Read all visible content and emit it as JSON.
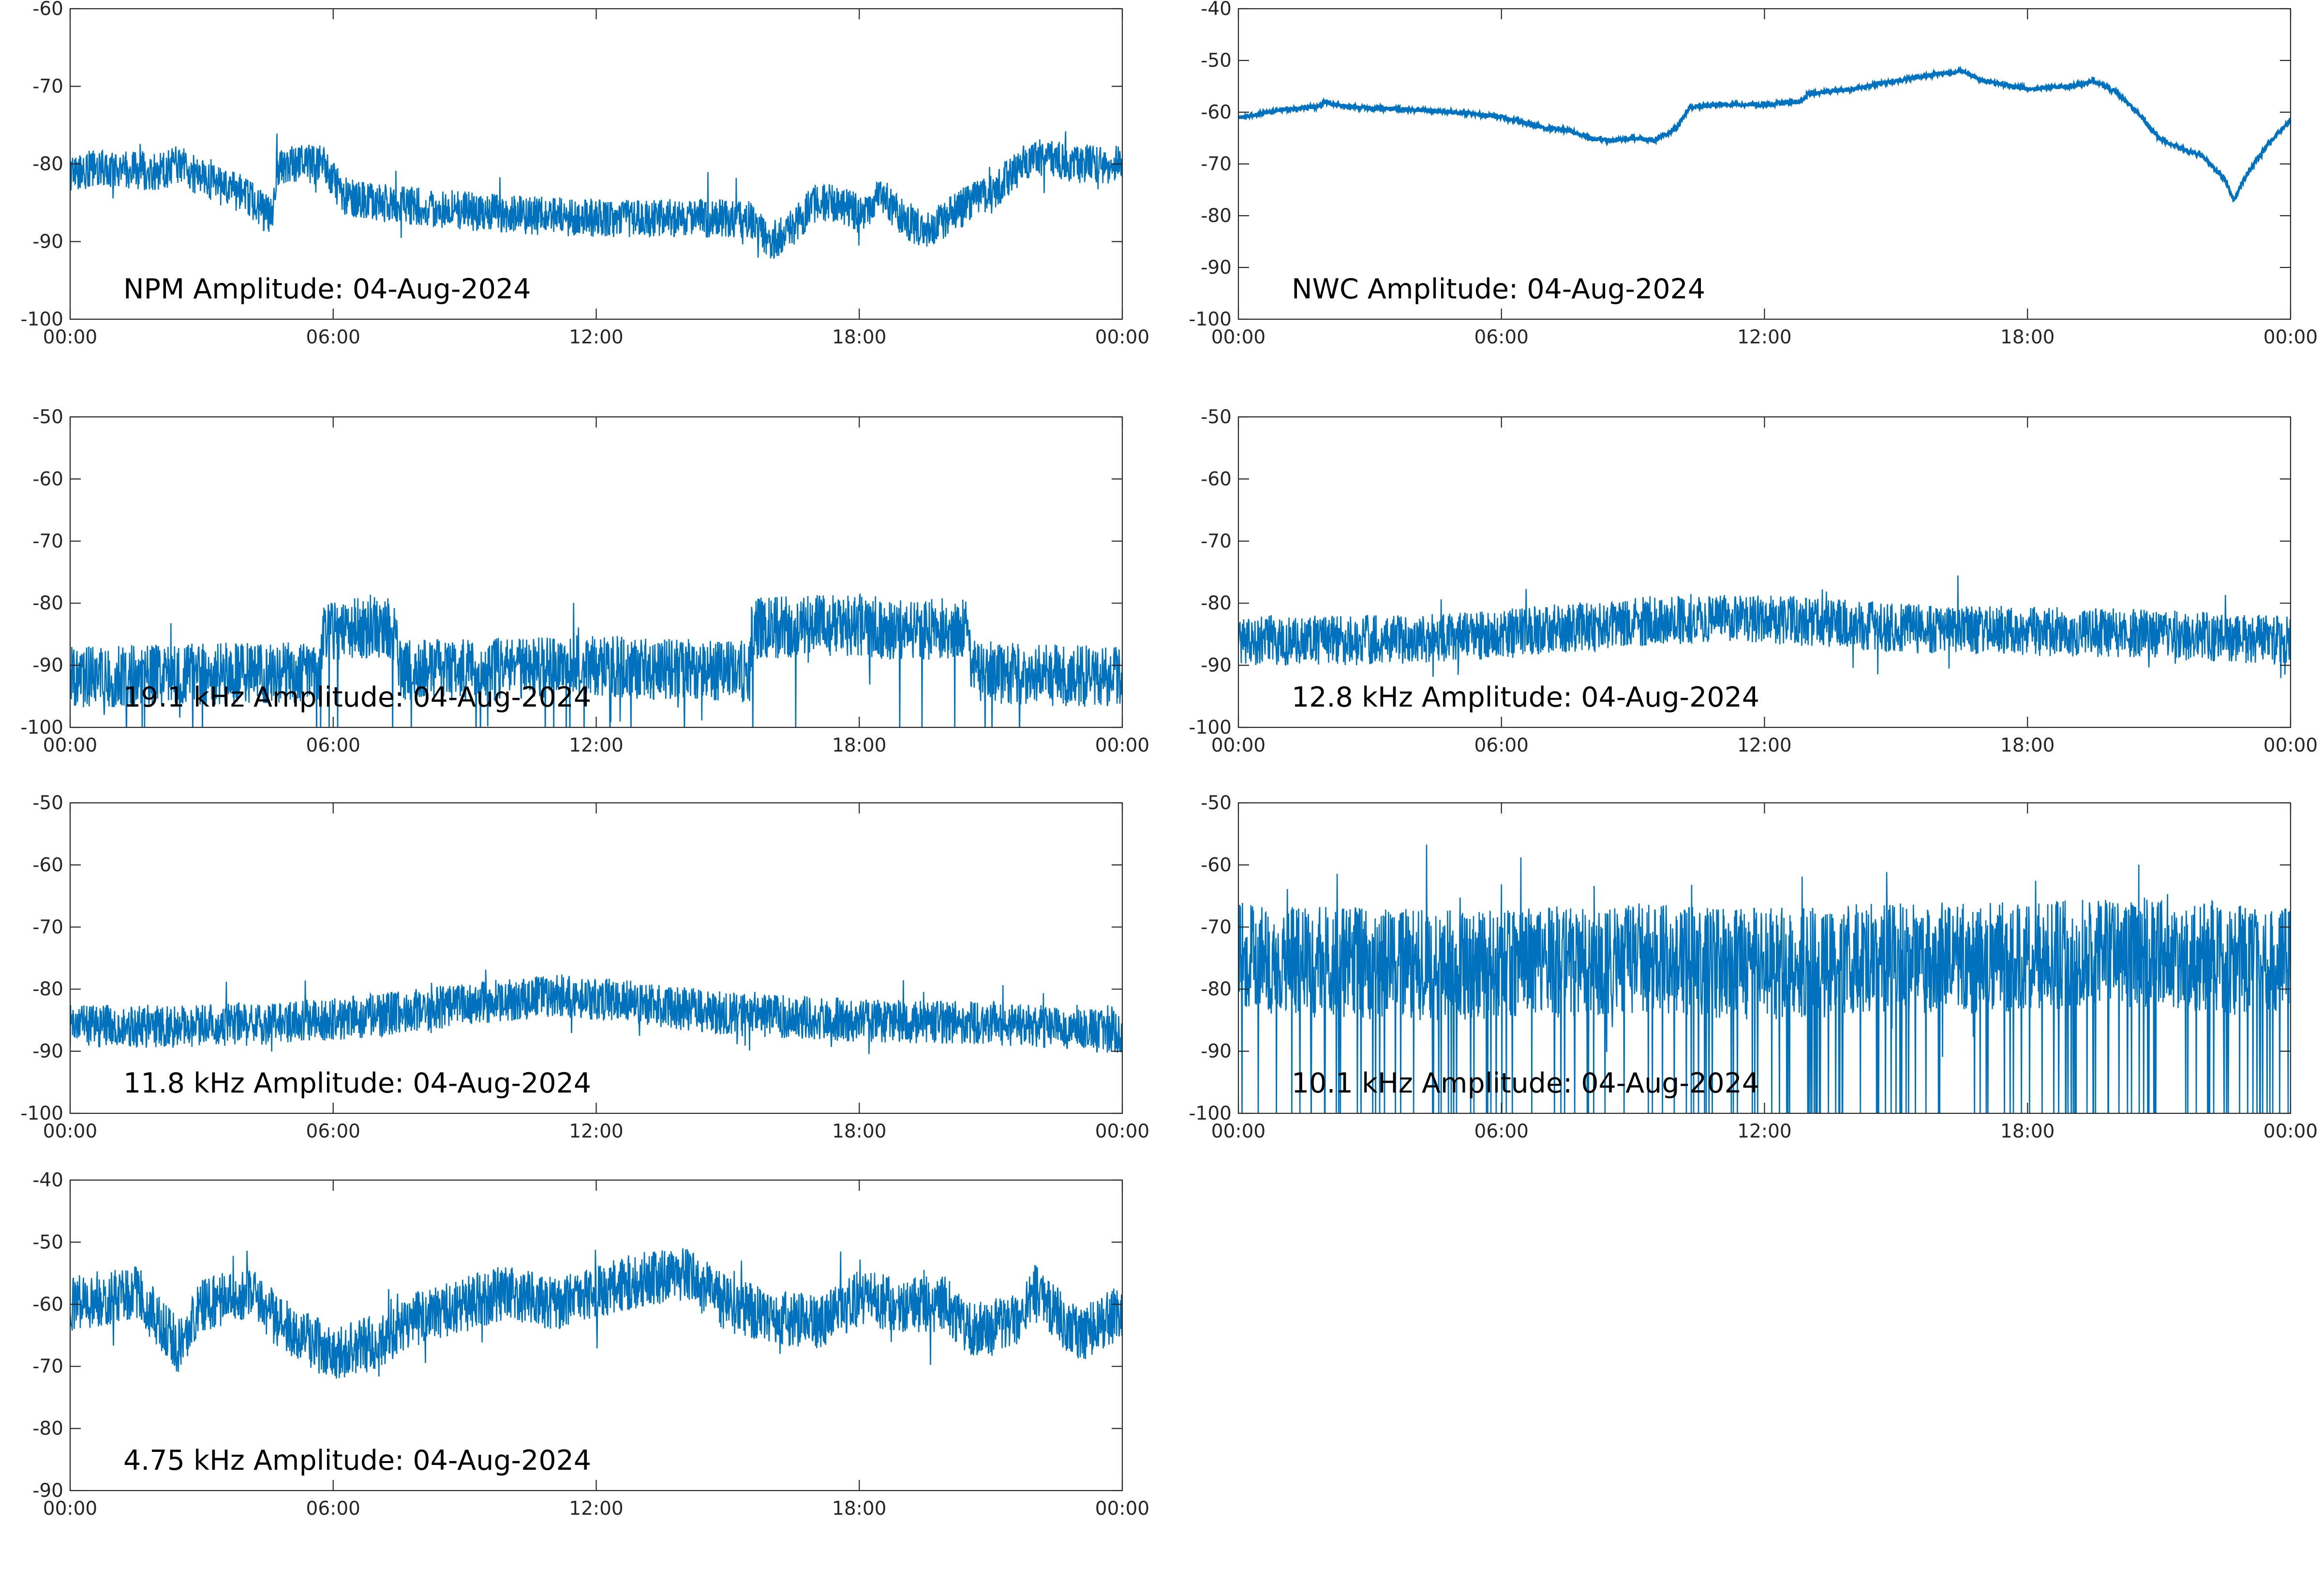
{
  "figure": {
    "trace_color": "#0072bd",
    "axis_color": "#262626",
    "background": "#ffffff"
  },
  "chart_data": [
    {
      "type": "line",
      "title": "NPM Amplitude: 04-Aug-2024",
      "x_tick_labels": [
        "00:00",
        "06:00",
        "12:00",
        "18:00",
        "00:00"
      ],
      "x_range_hours": [
        0,
        24
      ],
      "ylim": [
        -100,
        -60
      ],
      "y_ticks": [
        -100,
        -90,
        -80,
        -70,
        -60
      ],
      "grid": false,
      "series": [
        {
          "noise": 2.5,
          "points": [
            [
              0,
              -81
            ],
            [
              1,
              -80.5
            ],
            [
              2,
              -81
            ],
            [
              2.5,
              -80
            ],
            [
              3,
              -82
            ],
            [
              4,
              -84
            ],
            [
              4.6,
              -87
            ],
            [
              4.7,
              -81
            ],
            [
              5,
              -80
            ],
            [
              5.8,
              -80
            ],
            [
              6.2,
              -84
            ],
            [
              7,
              -85
            ],
            [
              8,
              -85.5
            ],
            [
              10,
              -86.5
            ],
            [
              12,
              -87
            ],
            [
              14,
              -87
            ],
            [
              15.5,
              -87
            ],
            [
              16,
              -90
            ],
            [
              16.5,
              -88
            ],
            [
              17,
              -85
            ],
            [
              17.5,
              -85
            ],
            [
              18,
              -86.5
            ],
            [
              18.5,
              -84
            ],
            [
              19,
              -87
            ],
            [
              19.5,
              -88.5
            ],
            [
              20,
              -87
            ],
            [
              20.5,
              -85
            ],
            [
              21,
              -84
            ],
            [
              21.5,
              -81
            ],
            [
              22,
              -79
            ],
            [
              23,
              -80
            ],
            [
              24,
              -80
            ]
          ]
        }
      ]
    },
    {
      "type": "line",
      "title": "NWC Amplitude: 04-Aug-2024",
      "x_tick_labels": [
        "00:00",
        "06:00",
        "12:00",
        "18:00",
        "00:00"
      ],
      "x_range_hours": [
        0,
        24
      ],
      "ylim": [
        -100,
        -40
      ],
      "y_ticks": [
        -100,
        -90,
        -80,
        -70,
        -60,
        -50,
        -40
      ],
      "grid": false,
      "series": [
        {
          "noise": 0.4,
          "points": [
            [
              0,
              -61
            ],
            [
              1,
              -59.5
            ],
            [
              1.8,
              -59
            ],
            [
              2,
              -58
            ],
            [
              2.5,
              -59
            ],
            [
              4,
              -59.5
            ],
            [
              5,
              -60
            ],
            [
              6,
              -61
            ],
            [
              7,
              -63
            ],
            [
              7.5,
              -63.5
            ],
            [
              8,
              -65
            ],
            [
              8.5,
              -65.5
            ],
            [
              9,
              -65
            ],
            [
              9.5,
              -65.5
            ],
            [
              10,
              -63
            ],
            [
              10.3,
              -59
            ],
            [
              11,
              -58.5
            ],
            [
              12,
              -58.5
            ],
            [
              12.8,
              -58
            ],
            [
              13,
              -56.5
            ],
            [
              13.5,
              -56
            ],
            [
              14,
              -55.5
            ],
            [
              15,
              -54
            ],
            [
              16,
              -52.5
            ],
            [
              16.5,
              -52
            ],
            [
              17,
              -54
            ],
            [
              18,
              -55.5
            ],
            [
              19,
              -55
            ],
            [
              19.5,
              -54
            ],
            [
              20,
              -56
            ],
            [
              20.5,
              -60
            ],
            [
              21,
              -65
            ],
            [
              21.5,
              -67
            ],
            [
              22,
              -68.5
            ],
            [
              22.5,
              -73
            ],
            [
              22.7,
              -77
            ],
            [
              23,
              -72
            ],
            [
              23.5,
              -66
            ],
            [
              24,
              -61.5
            ]
          ]
        }
      ]
    },
    {
      "type": "line",
      "title": "19.1 kHz Amplitude: 04-Aug-2024",
      "x_tick_labels": [
        "00:00",
        "06:00",
        "12:00",
        "18:00",
        "00:00"
      ],
      "x_range_hours": [
        0,
        24
      ],
      "ylim": [
        -100,
        -50
      ],
      "y_ticks": [
        -100,
        -90,
        -80,
        -70,
        -60,
        -50
      ],
      "grid": false,
      "series": [
        {
          "noise": 5,
          "points": [
            [
              0,
              -92
            ],
            [
              5.7,
              -91
            ],
            [
              5.75,
              -85
            ],
            [
              6.5,
              -84
            ],
            [
              6.6,
              -84
            ],
            [
              7.0,
              -84
            ],
            [
              7.4,
              -84
            ],
            [
              7.5,
              -91
            ],
            [
              12,
              -90
            ],
            [
              15.5,
              -91
            ],
            [
              15.55,
              -84
            ],
            [
              18,
              -83.5
            ],
            [
              19,
              -84.5
            ],
            [
              20.5,
              -84
            ],
            [
              20.55,
              -91
            ],
            [
              24,
              -92
            ]
          ]
        }
      ]
    },
    {
      "type": "line",
      "title": "12.8 kHz Amplitude: 04-Aug-2024",
      "x_tick_labels": [
        "00:00",
        "06:00",
        "12:00",
        "18:00",
        "00:00"
      ],
      "x_range_hours": [
        0,
        24
      ],
      "ylim": [
        -100,
        -50
      ],
      "y_ticks": [
        -100,
        -90,
        -80,
        -70,
        -60,
        -50
      ],
      "grid": false,
      "series": [
        {
          "noise": 4,
          "points": [
            [
              0,
              -86
            ],
            [
              3,
              -86
            ],
            [
              6,
              -85
            ],
            [
              9,
              -83
            ],
            [
              12,
              -82.5
            ],
            [
              15,
              -84
            ],
            [
              18,
              -84.5
            ],
            [
              21,
              -85
            ],
            [
              24,
              -86
            ]
          ]
        }
      ]
    },
    {
      "type": "line",
      "title": "11.8 kHz Amplitude: 04-Aug-2024",
      "x_tick_labels": [
        "00:00",
        "06:00",
        "12:00",
        "18:00",
        "00:00"
      ],
      "x_range_hours": [
        0,
        24
      ],
      "ylim": [
        -100,
        -50
      ],
      "y_ticks": [
        -100,
        -90,
        -80,
        -70,
        -60,
        -50
      ],
      "grid": false,
      "series": [
        {
          "noise": 3.5,
          "points": [
            [
              0,
              -86
            ],
            [
              3,
              -86
            ],
            [
              6,
              -85
            ],
            [
              9,
              -82.5
            ],
            [
              11,
              -81
            ],
            [
              12,
              -81.5
            ],
            [
              15,
              -84
            ],
            [
              18,
              -85
            ],
            [
              21,
              -85.5
            ],
            [
              24,
              -87
            ]
          ]
        }
      ]
    },
    {
      "type": "line",
      "title": "10.1 kHz Amplitude: 04-Aug-2024",
      "x_tick_labels": [
        "00:00",
        "06:00",
        "12:00",
        "18:00",
        "00:00"
      ],
      "x_range_hours": [
        0,
        24
      ],
      "ylim": [
        -100,
        -50
      ],
      "y_ticks": [
        -100,
        -90,
        -80,
        -70,
        -60,
        -50
      ],
      "grid": false,
      "series": [
        {
          "noise": 9,
          "points": [
            [
              0,
              -75
            ],
            [
              3,
              -76
            ],
            [
              6,
              -76
            ],
            [
              9,
              -75
            ],
            [
              12,
              -76
            ],
            [
              15,
              -75
            ],
            [
              18,
              -75
            ],
            [
              21,
              -74
            ],
            [
              24,
              -76
            ]
          ]
        }
      ]
    },
    {
      "type": "line",
      "title": "4.75 kHz Amplitude: 04-Aug-2024",
      "x_tick_labels": [
        "00:00",
        "06:00",
        "12:00",
        "18:00",
        "00:00"
      ],
      "x_range_hours": [
        0,
        24
      ],
      "ylim": [
        -90,
        -40
      ],
      "y_ticks": [
        -90,
        -80,
        -70,
        -60,
        -50,
        -40
      ],
      "grid": false,
      "series": [
        {
          "noise": 4.5,
          "points": [
            [
              0,
              -60
            ],
            [
              1.5,
              -58
            ],
            [
              2.5,
              -67
            ],
            [
              3,
              -60
            ],
            [
              4,
              -58
            ],
            [
              5,
              -64
            ],
            [
              6,
              -68
            ],
            [
              7,
              -66
            ],
            [
              8,
              -62
            ],
            [
              9,
              -60
            ],
            [
              10,
              -58
            ],
            [
              11,
              -60
            ],
            [
              12,
              -58
            ],
            [
              13,
              -56
            ],
            [
              14,
              -55
            ],
            [
              15,
              -60
            ],
            [
              16,
              -62
            ],
            [
              17,
              -63
            ],
            [
              18,
              -59
            ],
            [
              19,
              -60
            ],
            [
              20,
              -60
            ],
            [
              20.5,
              -64
            ],
            [
              21.5,
              -63
            ],
            [
              22,
              -58
            ],
            [
              23,
              -65
            ],
            [
              24,
              -61
            ]
          ]
        }
      ]
    }
  ]
}
